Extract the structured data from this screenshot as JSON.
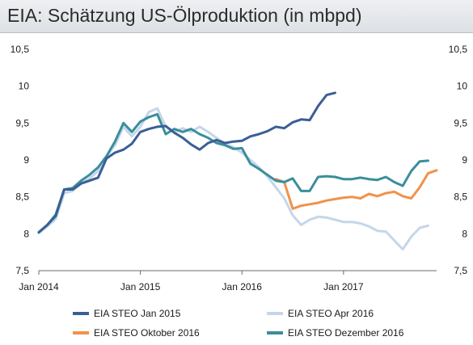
{
  "chart_data": {
    "type": "line",
    "title": "EIA: Schätzung US-Ölproduktion (in mbpd)",
    "xlabel": "",
    "ylabel": "",
    "x_ticks": [
      "Jan 2014",
      "Jan 2015",
      "Jan 2016",
      "Jan 2017"
    ],
    "y_ticks": [
      "7,5",
      "8",
      "8,5",
      "9",
      "9,5",
      "10",
      "10,5"
    ],
    "ylim": [
      7.5,
      10.5
    ],
    "x_start": "2014-01",
    "grid": false,
    "legend_position": "bottom",
    "series": [
      {
        "name": "EIA STEO Jan 2015",
        "color": "#3a5f96",
        "start": "2014-01",
        "values": [
          8.02,
          8.12,
          8.24,
          8.6,
          8.6,
          8.68,
          8.72,
          8.76,
          9.02,
          9.1,
          9.14,
          9.22,
          9.38,
          9.42,
          9.45,
          9.46,
          9.37,
          9.3,
          9.21,
          9.14,
          9.23,
          9.27,
          9.23,
          9.25,
          9.26,
          9.32,
          9.35,
          9.39,
          9.45,
          9.43,
          9.51,
          9.55,
          9.54,
          9.73,
          9.88,
          9.91
        ]
      },
      {
        "name": "EIA STEO Apr 2016",
        "color": "#c5d6e8",
        "start": "2014-01",
        "values": [
          8.01,
          8.1,
          8.2,
          8.55,
          8.58,
          8.68,
          8.75,
          8.85,
          9.05,
          9.2,
          9.45,
          9.32,
          9.45,
          9.65,
          9.7,
          9.45,
          9.38,
          9.43,
          9.38,
          9.45,
          9.38,
          9.3,
          9.22,
          9.17,
          9.1,
          9.0,
          8.9,
          8.78,
          8.63,
          8.48,
          8.25,
          8.12,
          8.19,
          8.23,
          8.22,
          8.19,
          8.16,
          8.16,
          8.14,
          8.1,
          8.04,
          8.03,
          7.91,
          7.79,
          7.96,
          8.08,
          8.11
        ]
      },
      {
        "name": "EIA STEO Oktober 2016",
        "color": "#f0924a",
        "start": "2016-05",
        "values": [
          8.74,
          8.7,
          8.34,
          8.38,
          8.4,
          8.42,
          8.45,
          8.47,
          8.49,
          8.5,
          8.48,
          8.54,
          8.51,
          8.55,
          8.57,
          8.51,
          8.48,
          8.63,
          8.82,
          8.86
        ]
      },
      {
        "name": "EIA STEO Dezember 2016",
        "color": "#3a8e9c",
        "start": "2014-01",
        "values": [
          8.02,
          8.12,
          8.26,
          8.6,
          8.62,
          8.72,
          8.8,
          8.9,
          9.05,
          9.25,
          9.5,
          9.38,
          9.52,
          9.58,
          9.62,
          9.35,
          9.42,
          9.38,
          9.42,
          9.35,
          9.3,
          9.23,
          9.2,
          9.15,
          9.16,
          8.95,
          8.88,
          8.8,
          8.72,
          8.7,
          8.75,
          8.58,
          8.58,
          8.77,
          8.78,
          8.77,
          8.74,
          8.74,
          8.76,
          8.74,
          8.73,
          8.77,
          8.7,
          8.65,
          8.85,
          8.98,
          8.99
        ]
      }
    ]
  }
}
